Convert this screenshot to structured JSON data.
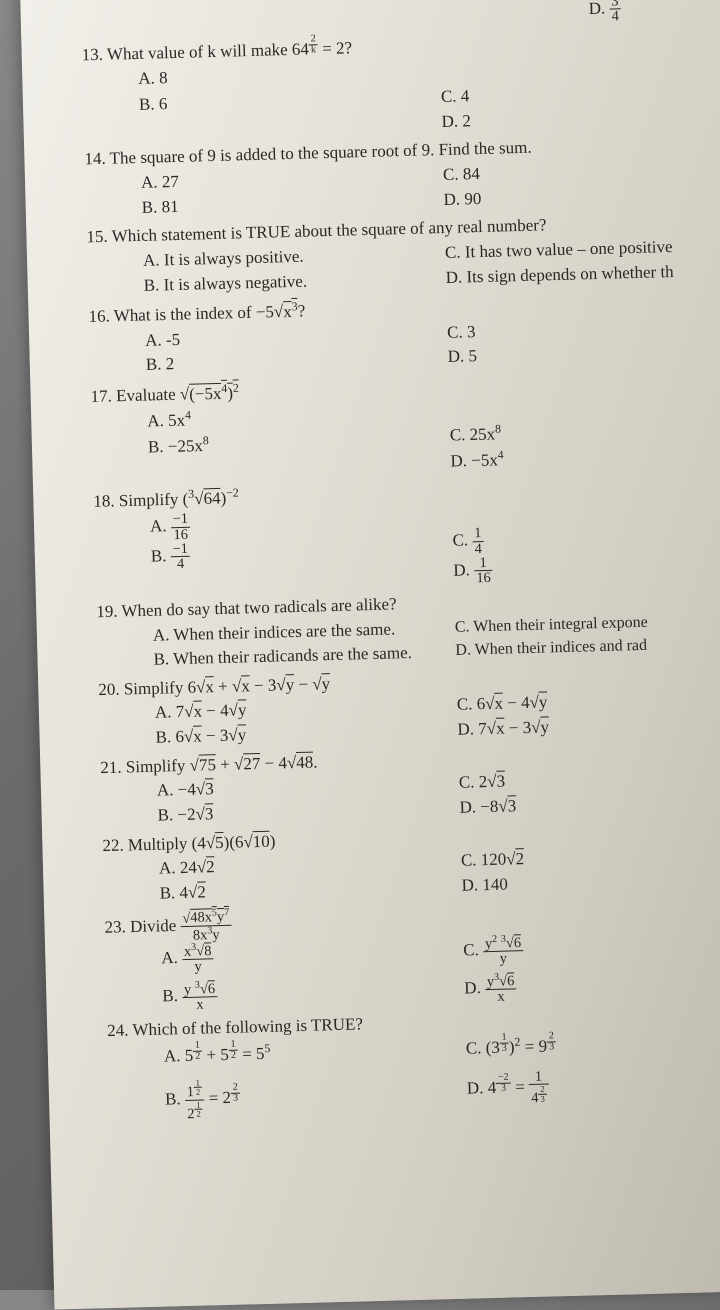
{
  "q13": {
    "d_top": "D. <span class='frac'><span class='t'>3</span><span class='b'>4</span></span>",
    "stem": "13. What value of k will make 64<sup><span class='frac'><span class='t'>2</span><span class='b'>k</span></span></sup> = 2?",
    "A": "A. 8",
    "B": "B. 6",
    "C": "C. 4",
    "D": "D. 2"
  },
  "q14": {
    "stem": "14. The square of 9 is added to the square root of 9. Find the sum.",
    "A": "A. 27",
    "B": "B. 81",
    "C": "C. 84",
    "D": "D. 90"
  },
  "q15": {
    "stem": "15. Which statement is TRUE about the square of any real number?",
    "A": "A. It is always positive.",
    "B": "B. It is always negative.",
    "C": "C. It has two value – one positive",
    "D": "D. Its sign depends on whether th"
  },
  "q16": {
    "stem": "16. What is the index of −5√<span class='sqrt'>x<sup>3</sup></span>?",
    "A": "A. -5",
    "B": "B. 2",
    "C": "C. 3",
    "D": "D. 5"
  },
  "q17": {
    "stem": "17. Evaluate √<span class='sqrt'>(−5x<sup>4</sup>)<sup>2</sup></span>",
    "A": "A. 5x<sup>4</sup>",
    "B": "B. −25x<sup>8</sup>",
    "C": "C. 25x<sup>8</sup>",
    "D": "D. −5x<sup>4</sup>"
  },
  "q18": {
    "stem": "18. Simplify (<sup>3</sup>√<span class='sqrt'>64</span>)<sup>−2</sup>",
    "A": "A. <span class='frac'><span class='t'>−1</span><span class='b'>16</span></span>",
    "B": "B. <span class='frac'><span class='t'>−1</span><span class='b'>4</span></span>",
    "C": "C. <span class='frac'><span class='t'>1</span><span class='b'>4</span></span>",
    "D": "D. <span class='frac'><span class='t'>1</span><span class='b'>16</span></span>"
  },
  "q19": {
    "stem": "19. When do say that two radicals are alike?",
    "A": "A. When their indices are the same.",
    "B": "B. When their radicands are the same.",
    "C": "C. When their integral expone",
    "D": "D. When their indices and rad"
  },
  "q20": {
    "stem": "20. Simplify 6√<span class='sqrt'>x</span> + √<span class='sqrt'>x</span> − 3√<span class='sqrt'>y</span> − √<span class='sqrt'>y</span>",
    "A": "A. 7√<span class='sqrt'>x</span> − 4√<span class='sqrt'>y</span>",
    "B": "B. 6√<span class='sqrt'>x</span> − 3√<span class='sqrt'>y</span>",
    "C": "C. 6√<span class='sqrt'>x</span> − 4√<span class='sqrt'>y</span>",
    "D": "D. 7√<span class='sqrt'>x</span> − 3√<span class='sqrt'>y</span>"
  },
  "q21": {
    "stem": "21. Simplify √<span class='sqrt'>75</span> + √<span class='sqrt'>27</span> − 4√<span class='sqrt'>48</span>.",
    "A": "A. −4√<span class='sqrt'>3</span>",
    "B": "B. −2√<span class='sqrt'>3</span>",
    "C": "C. 2√<span class='sqrt'>3</span>",
    "D": "D. −8√<span class='sqrt'>3</span>"
  },
  "q22": {
    "stem": "22. Multiply (4√<span class='sqrt'>5</span>)(6√<span class='sqrt'>10</span>)",
    "A": "A. 24√<span class='sqrt'>2</span>",
    "B": "B. 4√<span class='sqrt'>2</span>",
    "C": "C. 120√<span class='sqrt'>2</span>",
    "D": "D. 140"
  },
  "q23": {
    "stem": "23. Divide <span class='frac'><span class='t'>√<span class='sqrt'>48x<sup>5</sup>y<sup>7</sup></span></span><span class='b'>8x<sup>3</sup>y</span></span>",
    "A": "A. <span class='frac'><span class='t'>x<sup>3</sup>√<span class='sqrt'>8</span></span><span class='b'>y</span></span>",
    "B": "B. <span class='frac'><span class='t'>y <sup>3</sup>√<span class='sqrt'>6</span></span><span class='b'>x</span></span>",
    "C": "C. <span class='frac'><span class='t'>y<sup>2</sup> <sup>3</sup>√<span class='sqrt'>6</span></span><span class='b'>y</span></span>",
    "D": "D. <span class='frac'><span class='t'>y<sup>3</sup>√<span class='sqrt'>6</span></span><span class='b'>x</span></span>"
  },
  "q24": {
    "stem": "24. Which of the following is TRUE?",
    "A": "A. 5<sup><span class='frac'><span class='t'>1</span><span class='b'>2</span></span></sup> + 5<sup><span class='frac'><span class='t'>1</span><span class='b'>2</span></span></sup> = 5<sup>5</sup>",
    "B": "B. <span class='frac'><span class='t'>1<sup><span class='frac'><span class='t'>1</span><span class='b'>2</span></span></sup></span><span class='b'>2<sup><span class='frac'><span class='t'>1</span><span class='b'>2</span></span></sup></span></span> = 2<sup><span class='frac'><span class='t'>2</span><span class='b'>3</span></span></sup>",
    "C": "C. (3<sup><span class='frac'><span class='t'>1</span><span class='b'>3</span></span></sup>)<sup>2</sup> = 9<sup><span class='frac'><span class='t'>2</span><span class='b'>3</span></span></sup>",
    "D": "D. 4<sup><span class='frac'><span class='t'>−2</span><span class='b'>3</span></span></sup> = <span class='frac'><span class='t'>1</span><span class='b'>4<sup><span class='frac'><span class='t'>2</span><span class='b'>3</span></span></sup></span></span>"
  }
}
